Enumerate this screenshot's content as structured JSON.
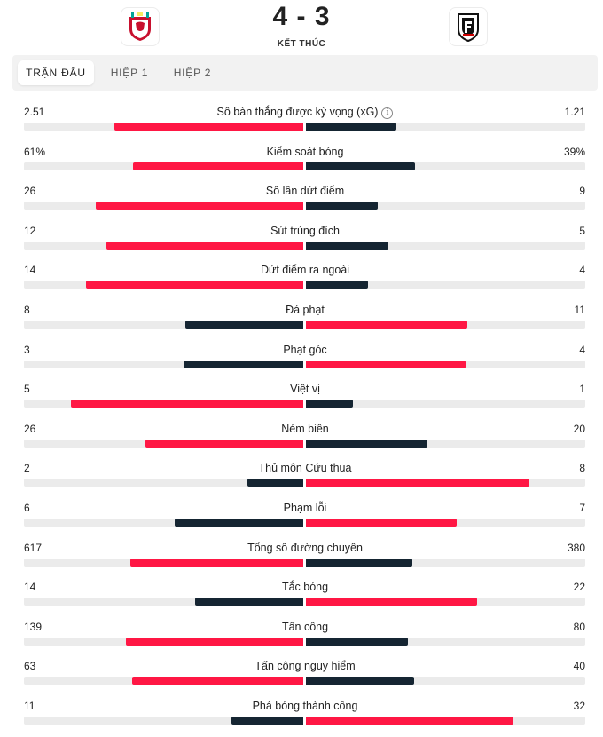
{
  "match": {
    "score": "4 - 3",
    "status": "KẾT THÚC",
    "home_logo_icon": "liverpool-crest-icon",
    "away_logo_icon": "fulham-crest-icon"
  },
  "tabs": [
    {
      "label": "TRẬN ĐẤU",
      "active": true
    },
    {
      "label": "HIỆP 1",
      "active": false
    },
    {
      "label": "HIỆP 2",
      "active": false
    }
  ],
  "colors": {
    "winner": "#ff1744",
    "loser": "#152532",
    "track": "#ebebeb"
  },
  "stats": [
    {
      "label": "Số bàn thắng được kỳ vọng (xG)",
      "home": "2.51",
      "away": "1.21",
      "h": 2.51,
      "a": 1.21,
      "info": true
    },
    {
      "label": "Kiểm soát bóng",
      "home": "61%",
      "away": "39%",
      "h": 61,
      "a": 39
    },
    {
      "label": "Số lần dứt điểm",
      "home": "26",
      "away": "9",
      "h": 26,
      "a": 9
    },
    {
      "label": "Sút trúng đích",
      "home": "12",
      "away": "5",
      "h": 12,
      "a": 5
    },
    {
      "label": "Dứt điểm ra ngoài",
      "home": "14",
      "away": "4",
      "h": 14,
      "a": 4
    },
    {
      "label": "Đá phạt",
      "home": "8",
      "away": "11",
      "h": 8,
      "a": 11
    },
    {
      "label": "Phạt góc",
      "home": "3",
      "away": "4",
      "h": 3,
      "a": 4
    },
    {
      "label": "Việt vị",
      "home": "5",
      "away": "1",
      "h": 5,
      "a": 1
    },
    {
      "label": "Ném biên",
      "home": "26",
      "away": "20",
      "h": 26,
      "a": 20
    },
    {
      "label": "Thủ môn Cứu thua",
      "home": "2",
      "away": "8",
      "h": 2,
      "a": 8
    },
    {
      "label": "Phạm lỗi",
      "home": "6",
      "away": "7",
      "h": 6,
      "a": 7
    },
    {
      "label": "Tổng số đường chuyền",
      "home": "617",
      "away": "380",
      "h": 617,
      "a": 380
    },
    {
      "label": "Tắc bóng",
      "home": "14",
      "away": "22",
      "h": 14,
      "a": 22
    },
    {
      "label": "Tấn công",
      "home": "139",
      "away": "80",
      "h": 139,
      "a": 80
    },
    {
      "label": "Tấn công nguy hiểm",
      "home": "63",
      "away": "40",
      "h": 63,
      "a": 40
    },
    {
      "label": "Phá bóng thành công",
      "home": "11",
      "away": "32",
      "h": 11,
      "a": 32
    }
  ]
}
